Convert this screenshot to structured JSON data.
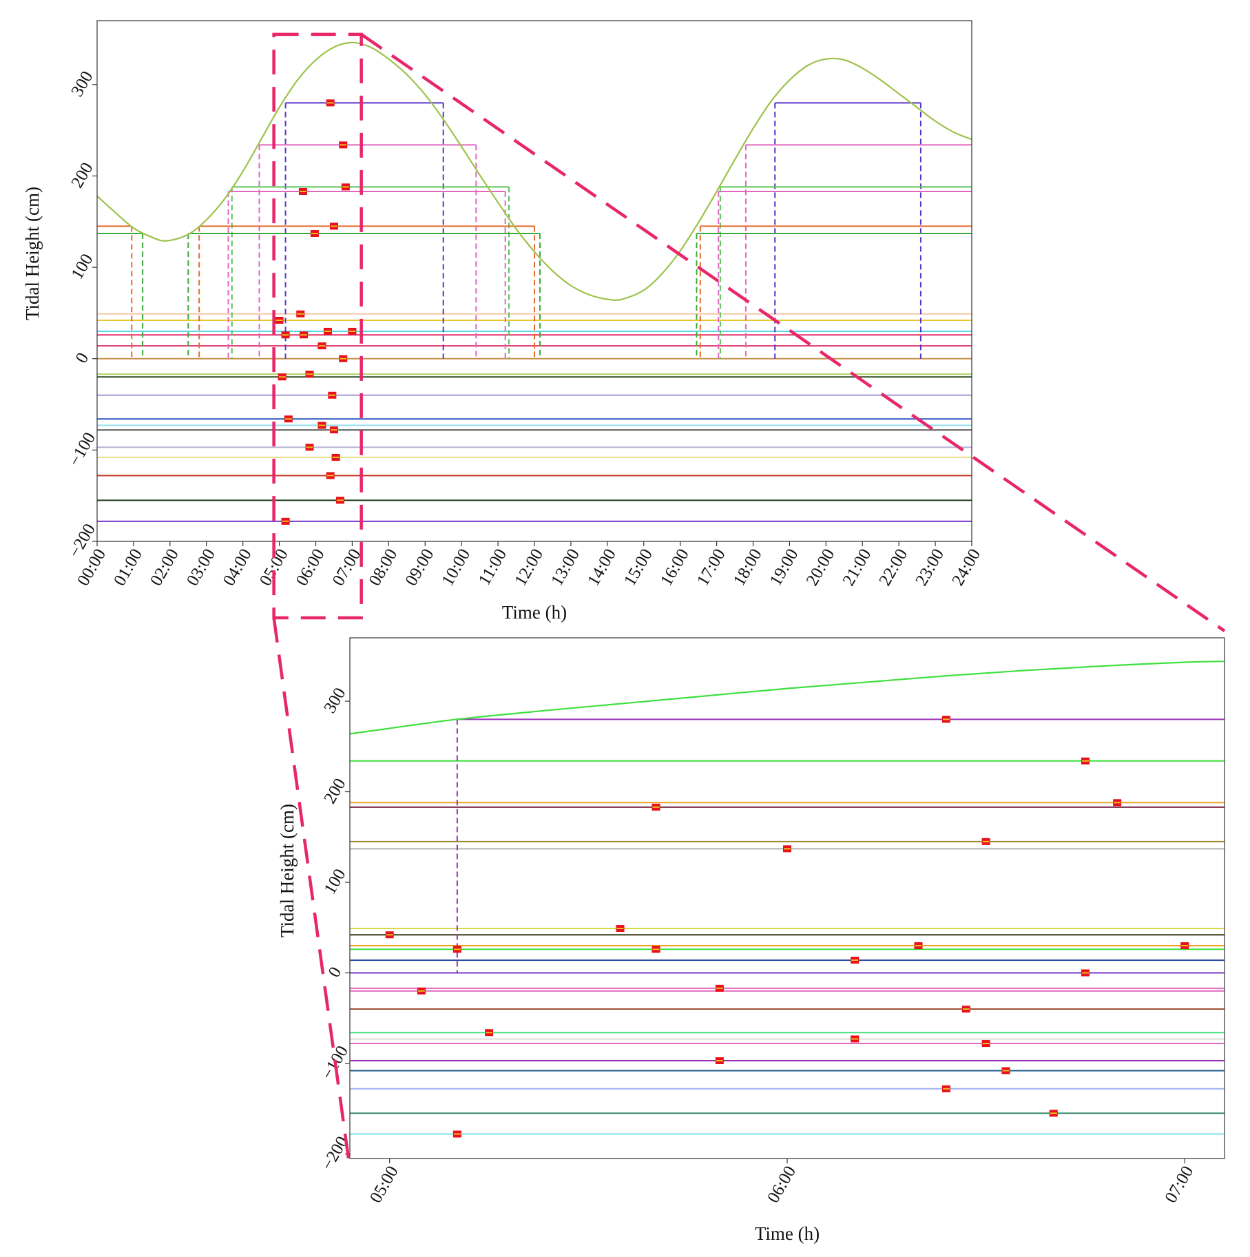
{
  "chart_data": [
    {
      "id": "main",
      "type": "line",
      "xlabel": "Time (h)",
      "ylabel": "Tidal Height (cm)",
      "xlim": [
        0,
        24
      ],
      "ylim": [
        -200,
        370
      ],
      "x_ticks": [
        0,
        1,
        2,
        3,
        4,
        5,
        6,
        7,
        8,
        9,
        10,
        11,
        12,
        13,
        14,
        15,
        16,
        17,
        18,
        19,
        20,
        21,
        22,
        23,
        24
      ],
      "x_tick_labels": [
        "00:00",
        "01:00",
        "02:00",
        "03:00",
        "04:00",
        "05:00",
        "06:00",
        "07:00",
        "08:00",
        "09:00",
        "10:00",
        "11:00",
        "12:00",
        "13:00",
        "14:00",
        "15:00",
        "16:00",
        "17:00",
        "18:00",
        "19:00",
        "20:00",
        "21:00",
        "22:00",
        "23:00",
        "24:00"
      ],
      "y_ticks": [
        -200,
        -100,
        0,
        100,
        200,
        300
      ],
      "y_tick_labels": [
        "−200",
        "−100",
        "0",
        "100",
        "200",
        "300"
      ],
      "tide_curve": {
        "color": "#9dc24a",
        "points": [
          [
            0,
            178
          ],
          [
            0.5,
            160
          ],
          [
            1,
            143
          ],
          [
            1.5,
            133
          ],
          [
            1.9,
            129
          ],
          [
            2.5,
            136
          ],
          [
            3,
            152
          ],
          [
            3.5,
            175
          ],
          [
            4,
            205
          ],
          [
            4.5,
            240
          ],
          [
            5,
            275
          ],
          [
            5.5,
            305
          ],
          [
            6,
            327
          ],
          [
            6.5,
            341
          ],
          [
            7,
            346
          ],
          [
            7.5,
            341
          ],
          [
            8,
            328
          ],
          [
            8.5,
            311
          ],
          [
            9,
            289
          ],
          [
            9.5,
            262
          ],
          [
            10,
            232
          ],
          [
            10.5,
            201
          ],
          [
            11,
            171
          ],
          [
            11.5,
            142
          ],
          [
            12,
            117
          ],
          [
            12.5,
            96
          ],
          [
            13,
            80
          ],
          [
            13.5,
            70
          ],
          [
            14,
            65
          ],
          [
            14.4,
            65
          ],
          [
            15,
            75
          ],
          [
            15.5,
            93
          ],
          [
            16,
            118
          ],
          [
            16.5,
            149
          ],
          [
            17,
            183
          ],
          [
            17.5,
            218
          ],
          [
            18,
            252
          ],
          [
            18.5,
            282
          ],
          [
            19,
            305
          ],
          [
            19.5,
            321
          ],
          [
            20,
            328
          ],
          [
            20.5,
            327
          ],
          [
            21,
            318
          ],
          [
            21.5,
            305
          ],
          [
            22,
            290
          ],
          [
            22.5,
            275
          ],
          [
            23,
            260
          ],
          [
            23.5,
            248
          ],
          [
            24,
            240
          ]
        ]
      },
      "level_lines": [
        {
          "y": 280,
          "color": "#5a35c8",
          "x_start": 5.17,
          "x_end": 9.5,
          "segments": [
            [
              5.17,
              9.5
            ],
            [
              18.6,
              22.6
            ]
          ],
          "dashed_x": [
            5.17,
            9.5,
            18.6,
            22.6
          ]
        },
        {
          "y": 234,
          "color": "#e066c0",
          "segments": [
            [
              4.45,
              10.4
            ],
            [
              17.8,
              24
            ]
          ],
          "dashed_x": [
            4.45,
            10.4,
            17.8
          ]
        },
        {
          "y": 188,
          "color": "#5cc25a",
          "segments": [
            [
              3.7,
              11.3
            ],
            [
              17.1,
              24
            ]
          ],
          "dashed_x": [
            3.7,
            11.3,
            17.1
          ]
        },
        {
          "y": 183,
          "color": "#e066c0",
          "segments": [
            [
              3.6,
              11.2
            ],
            [
              17.05,
              24
            ]
          ],
          "dashed_x": [
            3.6,
            11.2,
            17.05
          ]
        },
        {
          "y": 145,
          "color": "#e8682a",
          "segments": [
            [
              0,
              0.95
            ],
            [
              2.8,
              12.0
            ],
            [
              16.55,
              24
            ]
          ],
          "dashed_x": [
            0.95,
            2.8,
            12.0,
            16.55
          ]
        },
        {
          "y": 137,
          "color": "#3aaa3a",
          "segments": [
            [
              0,
              1.25
            ],
            [
              2.5,
              12.15
            ],
            [
              16.45,
              24
            ]
          ],
          "dashed_x": [
            1.25,
            2.5,
            12.15,
            16.45
          ]
        }
      ],
      "horizontal_lines": [
        {
          "y": 49,
          "color": "#f6c9a9"
        },
        {
          "y": 42,
          "color": "#e8c830"
        },
        {
          "y": 30,
          "color": "#5fd6e8"
        },
        {
          "y": 26,
          "color": "#e0306a"
        },
        {
          "y": 14,
          "color": "#e0306a"
        },
        {
          "y": 0,
          "color": "#c7904a"
        },
        {
          "y": -17,
          "color": "#a8d060"
        },
        {
          "y": -20,
          "color": "#2b4a1f"
        },
        {
          "y": -40,
          "color": "#a79ad4"
        },
        {
          "y": -66,
          "color": "#2b52c0"
        },
        {
          "y": -73,
          "color": "#8fdcf0"
        },
        {
          "y": -78,
          "color": "#555555"
        },
        {
          "y": -97,
          "color": "#b0b0d8"
        },
        {
          "y": -108,
          "color": "#e8e08a"
        },
        {
          "y": -128,
          "color": "#c83a2a"
        },
        {
          "y": -155,
          "color": "#1a3a1a"
        },
        {
          "y": -178,
          "color": "#7a3ac8"
        }
      ],
      "markers": [
        [
          6.4,
          280
        ],
        [
          6.75,
          234
        ],
        [
          5.65,
          183
        ],
        [
          6.82,
          188
        ],
        [
          5.97,
          137
        ],
        [
          6.5,
          145
        ],
        [
          5.0,
          42
        ],
        [
          5.58,
          49
        ],
        [
          5.17,
          26
        ],
        [
          5.67,
          26
        ],
        [
          6.33,
          30
        ],
        [
          7.0,
          30
        ],
        [
          6.17,
          14
        ],
        [
          6.75,
          0
        ],
        [
          5.08,
          -20
        ],
        [
          5.83,
          -17
        ],
        [
          6.45,
          -40
        ],
        [
          5.25,
          -66
        ],
        [
          6.17,
          -73
        ],
        [
          6.5,
          -78
        ],
        [
          5.83,
          -97
        ],
        [
          6.55,
          -108
        ],
        [
          6.4,
          -128
        ],
        [
          6.67,
          -155
        ],
        [
          5.17,
          -178
        ]
      ],
      "zoom_box": {
        "x": [
          4.85,
          7.25
        ],
        "y": [
          -200,
          355
        ],
        "color": "#e8266a"
      }
    },
    {
      "id": "inset",
      "type": "line",
      "xlabel": "Time (h)",
      "ylabel": "Tidal Height (cm)",
      "xlim": [
        4.9,
        7.1
      ],
      "ylim": [
        -205,
        370
      ],
      "x_ticks": [
        5,
        6,
        7
      ],
      "x_tick_labels": [
        "05:00",
        "06:00",
        "07:00"
      ],
      "y_ticks": [
        -200,
        -100,
        0,
        100,
        200,
        300
      ],
      "y_tick_labels": [
        "−200",
        "−100",
        "0",
        "100",
        "200",
        "300"
      ],
      "tide_curve": {
        "color": "#3ee03e",
        "points": [
          [
            4.9,
            264
          ],
          [
            5.0,
            270
          ],
          [
            5.17,
            280
          ],
          [
            5.4,
            290
          ],
          [
            5.6,
            298
          ],
          [
            5.8,
            306
          ],
          [
            6.0,
            314
          ],
          [
            6.2,
            321
          ],
          [
            6.4,
            328
          ],
          [
            6.6,
            334
          ],
          [
            6.8,
            339
          ],
          [
            7.0,
            343
          ],
          [
            7.1,
            344
          ]
        ]
      },
      "level_lines": [
        {
          "y": 280,
          "color": "#9b30b8",
          "x_start": 5.17,
          "x_end": 7.1,
          "dashed_x": [
            5.17
          ]
        }
      ],
      "horizontal_lines": [
        {
          "y": 234,
          "color": "#3ee03e"
        },
        {
          "y": 188,
          "color": "#f0a020"
        },
        {
          "y": 183,
          "color": "#7a2a4a"
        },
        {
          "y": 145,
          "color": "#9a8a30"
        },
        {
          "y": 137,
          "color": "#b0b0b0"
        },
        {
          "y": 49,
          "color": "#d8d840"
        },
        {
          "y": 42,
          "color": "#3a3a1a"
        },
        {
          "y": 30,
          "color": "#f0a020"
        },
        {
          "y": 26,
          "color": "#3ee03e"
        },
        {
          "y": 14,
          "color": "#2a4aa0"
        },
        {
          "y": 0,
          "color": "#7a3ac8"
        },
        {
          "y": -17,
          "color": "#e066c0"
        },
        {
          "y": -20,
          "color": "#e066c0"
        },
        {
          "y": -40,
          "color": "#a05030"
        },
        {
          "y": -66,
          "color": "#3ee07a"
        },
        {
          "y": -73,
          "color": "#e0d8d8"
        },
        {
          "y": -78,
          "color": "#e066c0"
        },
        {
          "y": -97,
          "color": "#9b30b8"
        },
        {
          "y": -108,
          "color": "#1a5a8a"
        },
        {
          "y": -128,
          "color": "#a0b0f0"
        },
        {
          "y": -155,
          "color": "#3a8a6a"
        },
        {
          "y": -178,
          "color": "#7ae0f0"
        }
      ],
      "markers": [
        [
          6.4,
          280
        ],
        [
          6.75,
          234
        ],
        [
          5.67,
          183
        ],
        [
          6.83,
          188
        ],
        [
          6.0,
          137
        ],
        [
          6.5,
          145
        ],
        [
          5.0,
          42
        ],
        [
          5.58,
          49
        ],
        [
          5.17,
          26
        ],
        [
          5.67,
          26
        ],
        [
          6.33,
          30
        ],
        [
          7.0,
          30
        ],
        [
          6.17,
          14
        ],
        [
          6.75,
          0
        ],
        [
          5.08,
          -20
        ],
        [
          5.83,
          -17
        ],
        [
          6.45,
          -40
        ],
        [
          5.25,
          -66
        ],
        [
          6.17,
          -73
        ],
        [
          6.5,
          -78
        ],
        [
          5.83,
          -97
        ],
        [
          6.55,
          -108
        ],
        [
          6.4,
          -128
        ],
        [
          6.67,
          -155
        ],
        [
          5.17,
          -178
        ]
      ]
    }
  ],
  "styles": {
    "marker_color": "#e8101a",
    "marker_center_color": "#e8c020",
    "zoom_color": "#e8266a",
    "axis_color": "#333333"
  }
}
